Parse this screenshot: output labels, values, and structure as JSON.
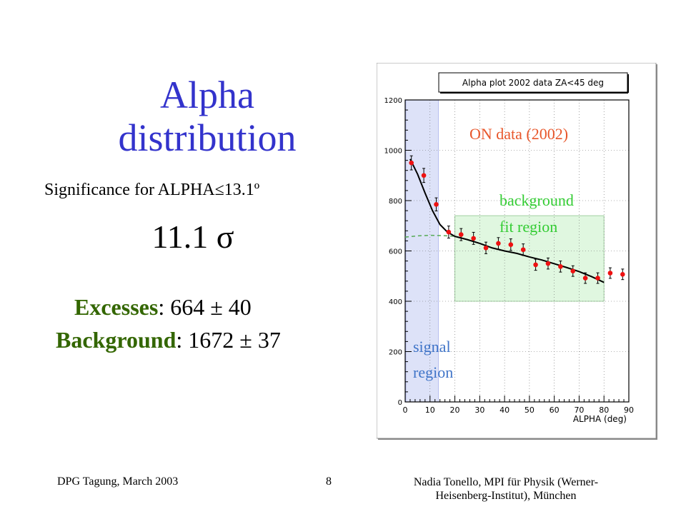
{
  "slide": {
    "title_line1": "Alpha",
    "title_line2": "distribution",
    "significance_label": "Significance  for ALPHA≤13.1º",
    "significance_value": "11.1  σ",
    "excess_label": "Excesses",
    "excess_value": ": 664 ± 40",
    "background_label": "Background",
    "background_value": ": 1672 ± 37"
  },
  "footer": {
    "left": "DPG Tagung, March 2003",
    "page": "8",
    "right_line1": "Nadia Tonello, MPI für Physik (Werner-",
    "right_line2": "Heisenberg-Institut), München"
  },
  "chart_data": {
    "type": "scatter",
    "title": "Alpha plot 2002 data ZA<45 deg",
    "xlabel": "ALPHA (deg)",
    "ylabel": "",
    "xlim": [
      0,
      90
    ],
    "ylim": [
      0,
      1200
    ],
    "x_ticks": [
      "0",
      "10",
      "20",
      "30",
      "40",
      "50",
      "60",
      "70",
      "80",
      "90"
    ],
    "y_ticks": [
      "0",
      "200",
      "400",
      "600",
      "800",
      "1000",
      "1200"
    ],
    "grid": true,
    "series": [
      {
        "x": [
          2.5,
          7.5,
          12.5,
          17.5,
          22.5,
          27.5,
          32.5,
          37.5,
          42.5,
          47.5,
          52.5,
          57.5,
          62.5,
          67.5,
          72.5,
          77.5,
          82.5,
          87.5
        ],
        "values": [
          950,
          900,
          785,
          675,
          665,
          650,
          612,
          630,
          625,
          605,
          545,
          550,
          538,
          520,
          492,
          492,
          512,
          507
        ],
        "errors": [
          28,
          28,
          26,
          24,
          24,
          24,
          23,
          23,
          23,
          23,
          22,
          22,
          22,
          21,
          21,
          21,
          21,
          21
        ]
      }
    ],
    "fit_curve": {
      "x": [
        2,
        5,
        8,
        11,
        14,
        17,
        20,
        25,
        30,
        35,
        40,
        45,
        50,
        55,
        60,
        65,
        70,
        75,
        80
      ],
      "values": [
        965,
        905,
        830,
        760,
        705,
        675,
        658,
        645,
        630,
        612,
        600,
        590,
        576,
        564,
        549,
        534,
        518,
        498,
        475
      ]
    },
    "extrapolated_curve": {
      "x": [
        0,
        5,
        10,
        15,
        20
      ],
      "values": [
        655,
        660,
        662,
        661,
        658
      ]
    },
    "signal_region": [
      0,
      13.1
    ],
    "background_fit_region": {
      "x": [
        20,
        80
      ],
      "y": [
        400,
        740
      ]
    },
    "annotations": {
      "on_data": "ON data (2002)",
      "bg_line1": "background",
      "bg_line2": "fit region",
      "sig_line1": "signal",
      "sig_line2": "region"
    },
    "colors": {
      "points": "#ee1111",
      "fit": "#000000",
      "extrapolation": "#55aa55",
      "signal_region": "#d8def7",
      "background_region": "#ddf7dd",
      "on_data_text": "#e8562a",
      "background_text": "#33cc33",
      "signal_text": "#3f74c8"
    }
  }
}
